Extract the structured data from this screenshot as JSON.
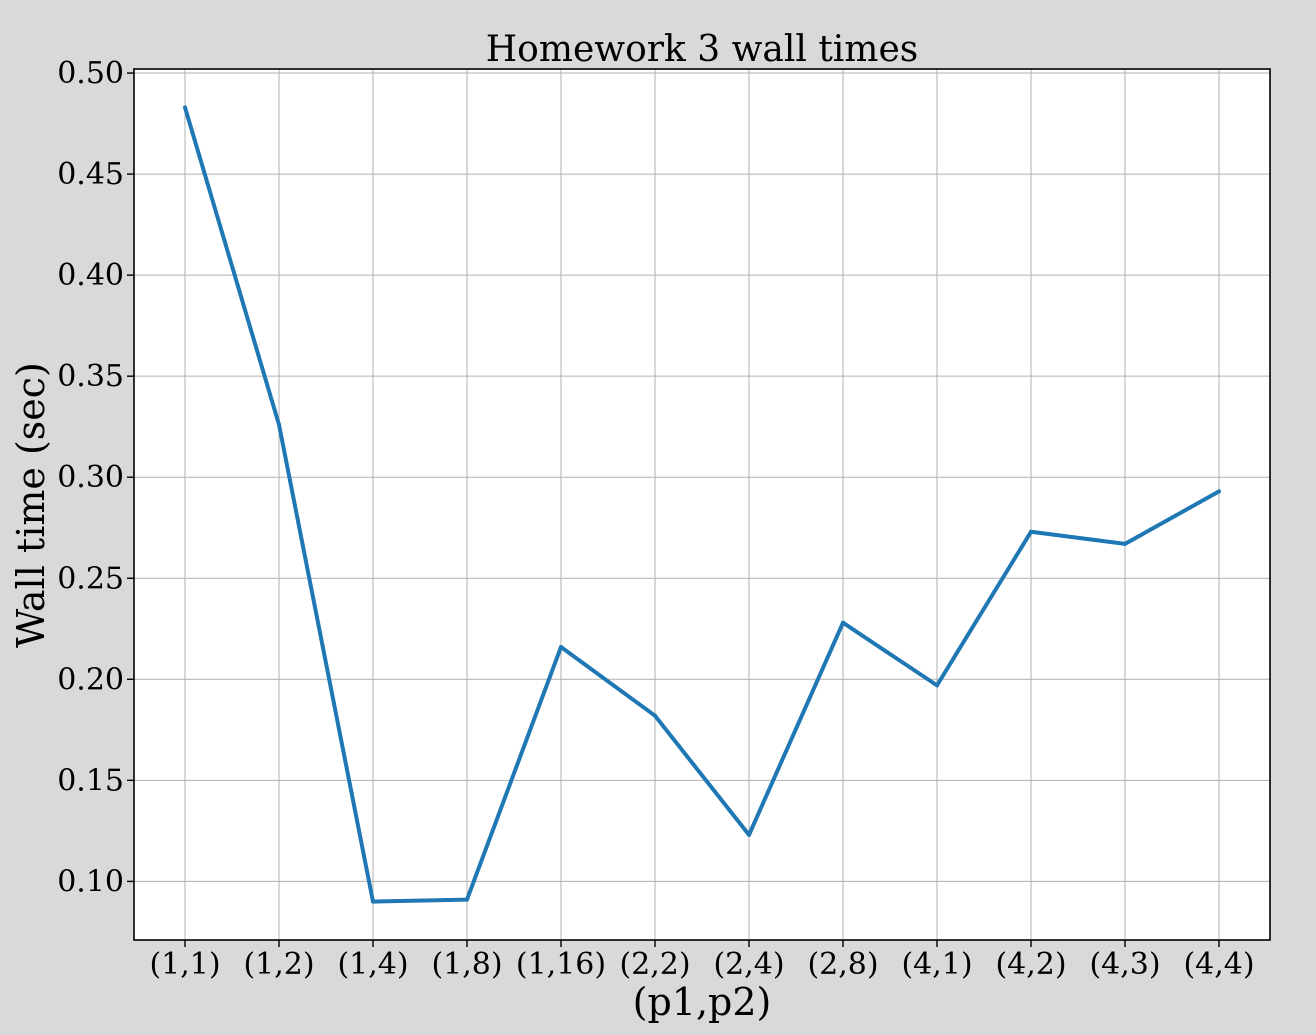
{
  "chart_data": {
    "type": "line",
    "title": "Homework 3 wall times",
    "xlabel": "(p1,p2)",
    "ylabel": "Wall time (sec)",
    "categories": [
      "(1,1)",
      "(1,2)",
      "(1,4)",
      "(1,8)",
      "(1,16)",
      "(2,2)",
      "(2,4)",
      "(2,8)",
      "(4,1)",
      "(4,2)",
      "(4,3)",
      "(4,4)"
    ],
    "series": [
      {
        "values": [
          0.483,
          0.326,
          0.09,
          0.091,
          0.216,
          0.182,
          0.123,
          0.228,
          0.197,
          0.273,
          0.267,
          0.293
        ]
      }
    ],
    "ylim": [
      0.071,
      0.502
    ],
    "yticks": [
      "0.10",
      "0.15",
      "0.20",
      "0.25",
      "0.30",
      "0.35",
      "0.40",
      "0.45",
      "0.50"
    ],
    "grid": true,
    "colors": {
      "line": "#1f77b4",
      "grid": "#b0b0b0",
      "figure_bg": "#d9d9d9",
      "axes_bg": "#ffffff"
    }
  }
}
